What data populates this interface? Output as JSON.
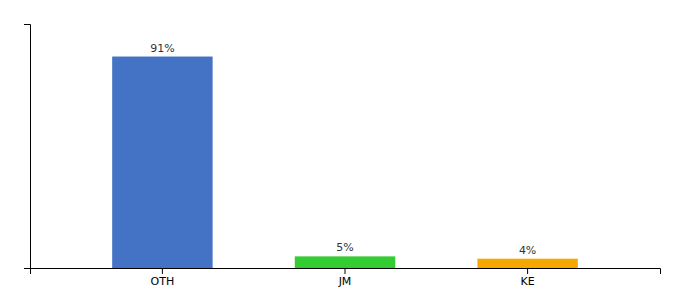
{
  "chart_data": {
    "type": "bar",
    "categories": [
      "OTH",
      "JM",
      "KE"
    ],
    "values": [
      91,
      5,
      4
    ],
    "value_labels": [
      "91%",
      "5%",
      "4%"
    ],
    "colors": [
      "#4472c4",
      "#33cc33",
      "#f5a800"
    ],
    "ylim": [
      0,
      105
    ],
    "yticks": [],
    "data_labels": true,
    "tick_labels": "x",
    "grid": false
  }
}
